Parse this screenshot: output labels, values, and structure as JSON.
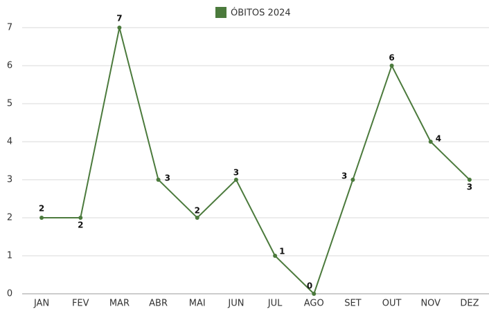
{
  "chart_data": {
    "type": "line",
    "categories": [
      "JAN",
      "FEV",
      "MAR",
      "ABR",
      "MAI",
      "JUN",
      "JUL",
      "AGO",
      "SET",
      "OUT",
      "NOV",
      "DEZ"
    ],
    "series": [
      {
        "name": "ÓBITOS 2024",
        "color": "#4b7a3c",
        "values": [
          2,
          2,
          7,
          3,
          2,
          3,
          1,
          0,
          3,
          6,
          4,
          3
        ]
      }
    ],
    "ylim": [
      0,
      7
    ],
    "yticks": [
      0,
      1,
      2,
      3,
      4,
      5,
      6,
      7
    ],
    "grid": true,
    "legend": "top"
  }
}
